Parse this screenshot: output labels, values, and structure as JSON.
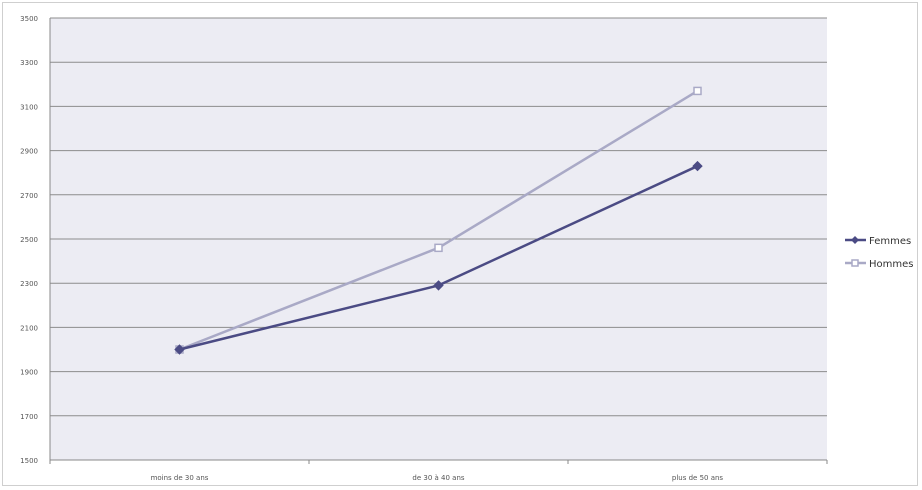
{
  "chart_data": {
    "type": "line",
    "title": "",
    "xlabel": "",
    "ylabel": "",
    "categories": [
      "moins de 30 ans",
      "de 30 à 40 ans",
      "plus de 50 ans"
    ],
    "ylim": [
      1500,
      3500
    ],
    "yticks": [
      1500,
      1700,
      1900,
      2100,
      2300,
      2500,
      2700,
      2900,
      3100,
      3300,
      3500
    ],
    "grid": true,
    "legend_position": "right",
    "series": [
      {
        "name": "Femmes",
        "values": [
          2000,
          2290,
          2830
        ],
        "color": "#4b4b84",
        "marker": "diamond"
      },
      {
        "name": "Hommes",
        "values": [
          2000,
          2460,
          3170
        ],
        "color": "#a9a9c6",
        "marker": "square"
      }
    ],
    "colors": {
      "plot_background": "#ececf3",
      "gridline": "#8c8c8c",
      "axis_text": "#555555"
    }
  }
}
